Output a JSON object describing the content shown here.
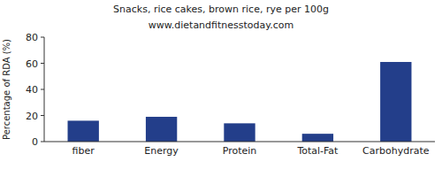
{
  "chart_data": {
    "type": "bar",
    "title": "Snacks, rice cakes, brown rice, rye per 100g",
    "subtitle": "www.dietandfitnesstoday.com",
    "y_label": "Percentage of RDA (%)",
    "categories": [
      "fiber",
      "Energy",
      "Protein",
      "Total-Fat",
      "Carbohydrate"
    ],
    "values": [
      16,
      19,
      14,
      6,
      61
    ],
    "color": "#233e8a",
    "ylim": [
      0,
      80
    ],
    "yticks": [
      0,
      20,
      40,
      60,
      80
    ],
    "grid": false
  }
}
